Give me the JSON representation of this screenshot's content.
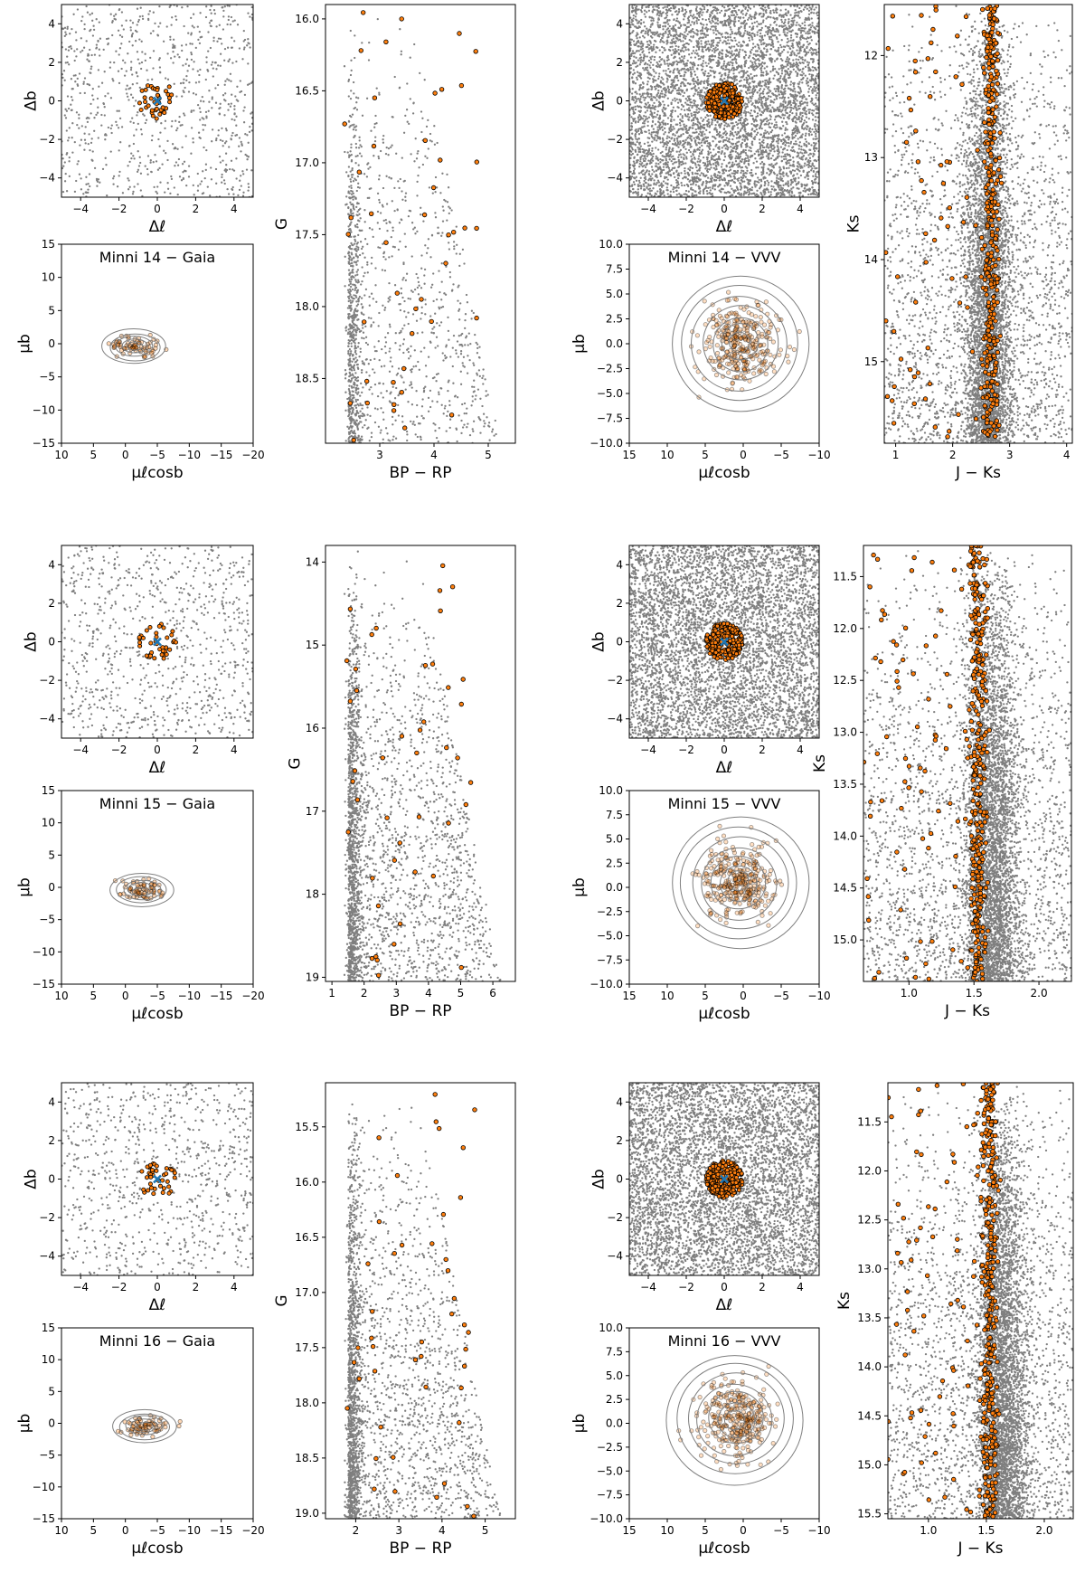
{
  "figure": {
    "rows": [
      {
        "cluster": "Minni 14",
        "sky_seed": 11,
        "gaia_title": "Minni 14  −  Gaia",
        "vvv_title": "Minni 14  −  VVV"
      },
      {
        "cluster": "Minni 15",
        "sky_seed": 22,
        "gaia_title": "Minni 15  −  Gaia",
        "vvv_title": "Minni 15  −  VVV"
      },
      {
        "cluster": "Minni 16",
        "sky_seed": 33,
        "gaia_title": "Minni 16  −  Gaia",
        "vvv_title": "Minni 16  −  VVV"
      }
    ]
  },
  "colors": {
    "field_stars": "#7f7f7f",
    "members": "#ff7f0e",
    "member_edge": "#000000",
    "cluster_center": "#1f77b4",
    "contours": "#7f7f7f"
  },
  "chart_data": [
    {
      "id": "sky-gaia-r1",
      "type": "scatter",
      "xlabel": "Δℓ",
      "ylabel": "Δb",
      "xlim": [
        -5,
        5
      ],
      "ylim": [
        -5,
        5
      ],
      "xticks": [
        -4,
        -2,
        0,
        2,
        4
      ],
      "yticks": [
        -4,
        -2,
        0,
        2,
        4
      ],
      "field_density": "sparse",
      "members_radius": 1.0,
      "center": [
        0,
        0
      ]
    },
    {
      "id": "cmd-gaia-r1",
      "type": "scatter",
      "xlabel": "BP − RP",
      "ylabel": "G",
      "xlim": [
        2.0,
        5.5
      ],
      "ylim": [
        18.95,
        15.9
      ],
      "y_inverted": true,
      "xticks": [
        3,
        4,
        5
      ],
      "yticks": [
        16.0,
        16.5,
        17.0,
        17.5,
        18.0,
        18.5
      ]
    },
    {
      "id": "pm-gaia-r1",
      "type": "scatter",
      "title": "Minni 14  −  Gaia",
      "xlabel": "μℓcosb",
      "ylabel": "μb",
      "xlim": [
        10,
        -20
      ],
      "ylim": [
        -15,
        15
      ],
      "x_inverted": true,
      "xticks": [
        10,
        5,
        0,
        -5,
        -10,
        -15,
        -20
      ],
      "yticks": [
        -15,
        -10,
        -5,
        0,
        5,
        10,
        15
      ],
      "mean_pm": [
        -1.5,
        -0.5
      ],
      "contours": "yes"
    },
    {
      "id": "sky-vvv-r1",
      "type": "scatter",
      "xlabel": "Δℓ",
      "ylabel": "Δb",
      "xlim": [
        -5,
        5
      ],
      "ylim": [
        -5,
        5
      ],
      "xticks": [
        -4,
        -2,
        0,
        2,
        4
      ],
      "yticks": [
        -4,
        -2,
        0,
        2,
        4
      ],
      "field_density": "dense",
      "members_radius": 1.0,
      "center": [
        0,
        0
      ]
    },
    {
      "id": "cmd-vvv-r1",
      "type": "scatter",
      "xlabel": "J − Ks",
      "ylabel": "Ks",
      "xlim": [
        0.8,
        4.1
      ],
      "ylim": [
        15.8,
        11.5
      ],
      "y_inverted": true,
      "xticks": [
        1,
        2,
        3,
        4
      ],
      "yticks": [
        12,
        13,
        14,
        15
      ]
    },
    {
      "id": "pm-vvv-r1",
      "type": "scatter",
      "title": "Minni 14  −  VVV",
      "xlabel": "μℓcosb",
      "ylabel": "μb",
      "xlim": [
        15,
        -10
      ],
      "ylim": [
        -10,
        10
      ],
      "x_inverted": true,
      "xticks": [
        15,
        10,
        5,
        0,
        -5,
        -10
      ],
      "yticks": [
        -10.0,
        -7.5,
        -5.0,
        -2.5,
        0.0,
        2.5,
        5.0,
        7.5,
        10.0
      ],
      "mean_pm": [
        0.5,
        0.0
      ],
      "contours": "yes"
    },
    {
      "id": "sky-gaia-r2",
      "type": "scatter",
      "xlabel": "Δℓ",
      "ylabel": "Δb",
      "xlim": [
        -5,
        5
      ],
      "ylim": [
        -5,
        5
      ],
      "xticks": [
        -4,
        -2,
        0,
        2,
        4
      ],
      "yticks": [
        -4,
        -2,
        0,
        2,
        4
      ],
      "field_density": "sparse",
      "members_radius": 1.0,
      "center": [
        0,
        0
      ]
    },
    {
      "id": "cmd-gaia-r2",
      "type": "scatter",
      "xlabel": "BP − RP",
      "ylabel": "G",
      "xlim": [
        0.8,
        6.7
      ],
      "ylim": [
        19.05,
        13.8
      ],
      "y_inverted": true,
      "xticks": [
        1,
        2,
        3,
        4,
        5,
        6
      ],
      "yticks": [
        14,
        15,
        16,
        17,
        18,
        19
      ]
    },
    {
      "id": "pm-gaia-r2",
      "type": "scatter",
      "title": "Minni 15  −  Gaia",
      "xlabel": "μℓcosb",
      "ylabel": "μb",
      "xlim": [
        10,
        -20
      ],
      "ylim": [
        -15,
        15
      ],
      "x_inverted": true,
      "xticks": [
        10,
        5,
        0,
        -5,
        -10,
        -15,
        -20
      ],
      "yticks": [
        -15,
        -10,
        -5,
        0,
        5,
        10,
        15
      ],
      "mean_pm": [
        -2.5,
        -0.5
      ],
      "contours": "yes"
    },
    {
      "id": "sky-vvv-r2",
      "type": "scatter",
      "xlabel": "Δℓ",
      "ylabel": "Δb",
      "xlim": [
        -5,
        5
      ],
      "ylim": [
        -5,
        5
      ],
      "xticks": [
        -4,
        -2,
        0,
        2,
        4
      ],
      "yticks": [
        -4,
        -2,
        0,
        2,
        4
      ],
      "field_density": "dense",
      "members_radius": 1.0,
      "center": [
        0,
        0
      ]
    },
    {
      "id": "cmd-vvv-r2",
      "type": "scatter",
      "xlabel": "J − Ks",
      "ylabel": "Ks",
      "xlim": [
        0.65,
        2.25
      ],
      "ylim": [
        15.4,
        11.2
      ],
      "y_inverted": true,
      "xticks": [
        1.0,
        1.5,
        2.0
      ],
      "yticks": [
        11.5,
        12.0,
        12.5,
        13.0,
        13.5,
        14.0,
        14.5,
        15.0
      ]
    },
    {
      "id": "pm-vvv-r2",
      "type": "scatter",
      "title": "Minni 15  −  VVV",
      "xlabel": "μℓcosb",
      "ylabel": "μb",
      "xlim": [
        15,
        -10
      ],
      "ylim": [
        -10,
        10
      ],
      "x_inverted": true,
      "xticks": [
        15,
        10,
        5,
        0,
        -5,
        -10
      ],
      "yticks": [
        -10.0,
        -7.5,
        -5.0,
        -2.5,
        0.0,
        2.5,
        5.0,
        7.5,
        10.0
      ],
      "mean_pm": [
        0.5,
        0.5
      ],
      "contours": "yes"
    },
    {
      "id": "sky-gaia-r3",
      "type": "scatter",
      "xlabel": "Δℓ",
      "ylabel": "Δb",
      "xlim": [
        -5,
        5
      ],
      "ylim": [
        -5,
        5
      ],
      "xticks": [
        -4,
        -2,
        0,
        2,
        4
      ],
      "yticks": [
        -4,
        -2,
        0,
        2,
        4
      ],
      "field_density": "sparse",
      "members_radius": 1.0,
      "center": [
        0,
        0
      ]
    },
    {
      "id": "cmd-gaia-r3",
      "type": "scatter",
      "xlabel": "BP − RP",
      "ylabel": "G",
      "xlim": [
        1.3,
        5.7
      ],
      "ylim": [
        19.05,
        15.1
      ],
      "y_inverted": true,
      "xticks": [
        2,
        3,
        4,
        5
      ],
      "yticks": [
        15.5,
        16.0,
        16.5,
        17.0,
        17.5,
        18.0,
        18.5,
        19.0
      ]
    },
    {
      "id": "pm-gaia-r3",
      "type": "scatter",
      "title": "Minni 16  −  Gaia",
      "xlabel": "μℓcosb",
      "ylabel": "μb",
      "xlim": [
        10,
        -20
      ],
      "ylim": [
        -15,
        15
      ],
      "x_inverted": true,
      "xticks": [
        10,
        5,
        0,
        -5,
        -10,
        -15,
        -20
      ],
      "yticks": [
        -15,
        -10,
        -5,
        0,
        5,
        10,
        15
      ],
      "mean_pm": [
        -3.0,
        -0.5
      ],
      "contours": "yes"
    },
    {
      "id": "sky-vvv-r3",
      "type": "scatter",
      "xlabel": "Δℓ",
      "ylabel": "Δb",
      "xlim": [
        -5,
        5
      ],
      "ylim": [
        -5,
        5
      ],
      "xticks": [
        -4,
        -2,
        0,
        2,
        4
      ],
      "yticks": [
        -4,
        -2,
        0,
        2,
        4
      ],
      "field_density": "dense",
      "members_radius": 1.0,
      "center": [
        0,
        0
      ]
    },
    {
      "id": "cmd-vvv-r3",
      "type": "scatter",
      "xlabel": "J − Ks",
      "ylabel": "Ks",
      "xlim": [
        0.65,
        2.25
      ],
      "ylim": [
        15.55,
        11.1
      ],
      "y_inverted": true,
      "xticks": [
        1.0,
        1.5,
        2.0
      ],
      "yticks": [
        11.5,
        12.0,
        12.5,
        13.0,
        13.5,
        14.0,
        14.5,
        15.0,
        15.5
      ]
    },
    {
      "id": "pm-vvv-r3",
      "type": "scatter",
      "title": "Minni 16  −  VVV",
      "xlabel": "μℓcosb",
      "ylabel": "μb",
      "xlim": [
        15,
        -10
      ],
      "ylim": [
        -10,
        10
      ],
      "x_inverted": true,
      "xticks": [
        15,
        10,
        5,
        0,
        -5,
        -10
      ],
      "yticks": [
        -10.0,
        -7.5,
        -5.0,
        -2.5,
        0.0,
        2.5,
        5.0,
        7.5,
        10.0
      ],
      "mean_pm": [
        1.0,
        0.5
      ],
      "contours": "yes"
    }
  ]
}
